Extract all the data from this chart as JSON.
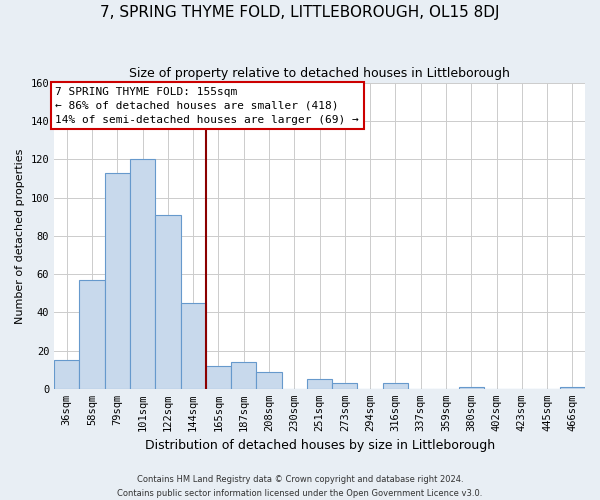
{
  "title": "7, SPRING THYME FOLD, LITTLEBOROUGH, OL15 8DJ",
  "subtitle": "Size of property relative to detached houses in Littleborough",
  "xlabel": "Distribution of detached houses by size in Littleborough",
  "ylabel": "Number of detached properties",
  "footer_line1": "Contains HM Land Registry data © Crown copyright and database right 2024.",
  "footer_line2": "Contains public sector information licensed under the Open Government Licence v3.0.",
  "bin_labels": [
    "36sqm",
    "58sqm",
    "79sqm",
    "101sqm",
    "122sqm",
    "144sqm",
    "165sqm",
    "187sqm",
    "208sqm",
    "230sqm",
    "251sqm",
    "273sqm",
    "294sqm",
    "316sqm",
    "337sqm",
    "359sqm",
    "380sqm",
    "402sqm",
    "423sqm",
    "445sqm",
    "466sqm"
  ],
  "bar_heights": [
    15,
    57,
    113,
    120,
    91,
    45,
    12,
    14,
    9,
    0,
    5,
    3,
    0,
    3,
    0,
    0,
    1,
    0,
    0,
    0,
    1
  ],
  "bar_color": "#c8d9ec",
  "bar_edge_color": "#6699cc",
  "vline_x": 6.0,
  "vline_color": "#8b0000",
  "annotation_title": "7 SPRING THYME FOLD: 155sqm",
  "annotation_line1": "← 86% of detached houses are smaller (418)",
  "annotation_line2": "14% of semi-detached houses are larger (69) →",
  "annotation_box_color": "white",
  "annotation_box_edgecolor": "#cc0000",
  "ylim": [
    0,
    160
  ],
  "yticks": [
    0,
    20,
    40,
    60,
    80,
    100,
    120,
    140,
    160
  ],
  "background_color": "#e8eef4",
  "plot_background_color": "white",
  "grid_color": "#cccccc",
  "title_fontsize": 11,
  "subtitle_fontsize": 9,
  "xlabel_fontsize": 9,
  "ylabel_fontsize": 8,
  "tick_fontsize": 7.5,
  "footer_fontsize": 6,
  "annotation_fontsize": 8
}
